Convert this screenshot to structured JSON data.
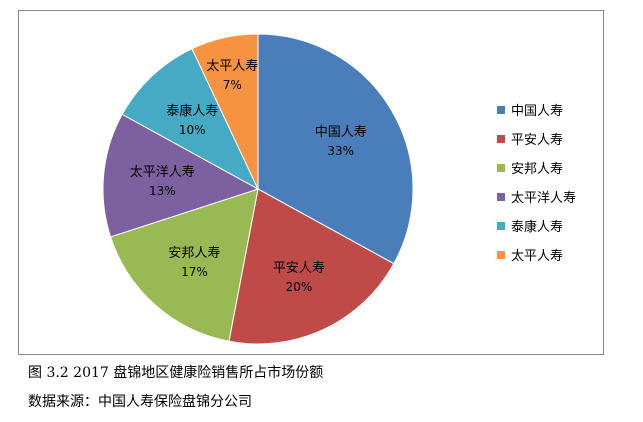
{
  "chart_data": {
    "type": "pie",
    "categories": [
      "中国人寿",
      "平安人寿",
      "安邦人寿",
      "太平洋人寿",
      "泰康人寿",
      "太平人寿"
    ],
    "values": [
      33,
      20,
      17,
      13,
      10,
      7
    ],
    "value_labels": [
      "33%",
      "20%",
      "17%",
      "13%",
      "10%",
      "7%"
    ],
    "colors": [
      "#4a7ebb",
      "#be4b48",
      "#98b954",
      "#7d60a0",
      "#46aac5",
      "#f69240"
    ],
    "start_angle_deg": 0,
    "direction": "clockwise",
    "legend_position": "right",
    "title": ""
  },
  "caption": "图 3.2 2017 盘锦地区健康险销售所占市场份额",
  "source": "数据来源：中国人寿保险盘锦分公司"
}
